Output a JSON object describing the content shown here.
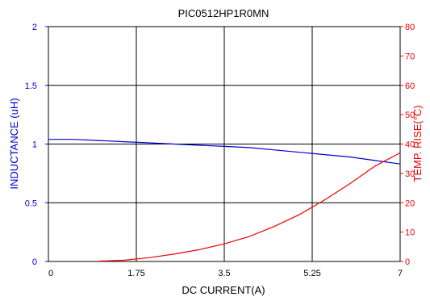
{
  "chart_data": {
    "type": "line",
    "title": "PIC0512HP1R0MN",
    "xlabel": "DC CURRENT(A)",
    "ylabel_left": "INDUCTANCE (uH)",
    "ylabel_right": "TEMP. RISE(°C)",
    "xlim": [
      0,
      7
    ],
    "ylim_left": [
      0,
      2
    ],
    "ylim_right": [
      0,
      80
    ],
    "x_ticks": [
      "0",
      "1.75",
      "3.5",
      "5.25",
      "7"
    ],
    "y_left_ticks": [
      "0",
      "0.5",
      "1",
      "1.5",
      "2"
    ],
    "y_right_ticks": [
      "0",
      "10",
      "20",
      "30",
      "40",
      "50",
      "60",
      "70",
      "80"
    ],
    "grid": true,
    "series": [
      {
        "axis": "left",
        "color": "#0000cc",
        "x": [
          0,
          0.5,
          1.0,
          1.5,
          2.0,
          2.5,
          3.0,
          3.5,
          4.0,
          4.5,
          5.0,
          5.5,
          6.0,
          6.5,
          7.0
        ],
        "y": [
          1.04,
          1.04,
          1.03,
          1.02,
          1.01,
          1.0,
          0.99,
          0.98,
          0.97,
          0.95,
          0.93,
          0.91,
          0.89,
          0.86,
          0.83
        ]
      },
      {
        "axis": "right",
        "color": "#ee0000",
        "x": [
          1.0,
          1.5,
          2.0,
          2.5,
          3.0,
          3.5,
          4.0,
          4.5,
          5.0,
          5.5,
          6.0,
          6.5,
          7.0
        ],
        "y": [
          0.1,
          0.4,
          1.3,
          2.5,
          4.0,
          6.0,
          8.5,
          12.0,
          16.0,
          21.0,
          26.5,
          32.5,
          37.0
        ]
      }
    ]
  }
}
